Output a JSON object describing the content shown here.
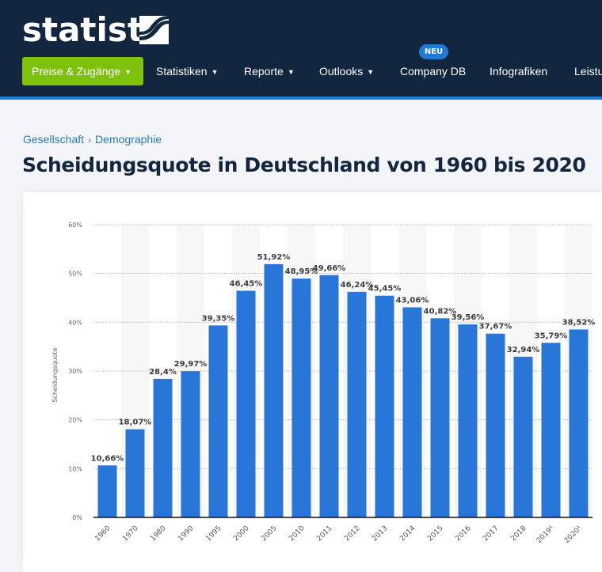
{
  "header": {
    "logo_text": "statista",
    "nav": [
      {
        "label": "Preise & Zugänge",
        "dropdown": true,
        "primary": true
      },
      {
        "label": "Statistiken",
        "dropdown": true
      },
      {
        "label": "Reporte",
        "dropdown": true
      },
      {
        "label": "Outlooks",
        "dropdown": true
      },
      {
        "label": "Company DB",
        "dropdown": false,
        "badge": "NEU"
      },
      {
        "label": "Infografiken",
        "dropdown": false
      },
      {
        "label": "Leistu",
        "dropdown": false
      }
    ],
    "colors": {
      "bar": "#13263f",
      "accent": "#1f7bd2",
      "primary_button": "#7ec20c"
    }
  },
  "breadcrumb": {
    "items": [
      "Gesellschaft",
      "Demographie"
    ],
    "separator": "›"
  },
  "page_title": "Scheidungsquote in Deutschland von 1960 bis 2020",
  "chart_data": {
    "type": "bar",
    "title": "",
    "xlabel": "",
    "ylabel": "Scheidungsquote",
    "ylim": [
      0,
      60
    ],
    "yticks": [
      0,
      10,
      20,
      30,
      40,
      50,
      60
    ],
    "ytick_labels": [
      "0%",
      "10%",
      "20%",
      "30%",
      "40%",
      "50%",
      "60%"
    ],
    "grid": true,
    "bar_color": "#2876d8",
    "categories": [
      "1960",
      "1970",
      "1980",
      "1990",
      "1995",
      "2000",
      "2005",
      "2010",
      "2011",
      "2012",
      "2013",
      "2014",
      "2015",
      "2016",
      "2017",
      "2018",
      "2019¹",
      "2020¹"
    ],
    "values": [
      10.66,
      18.07,
      28.4,
      29.97,
      39.35,
      46.45,
      51.92,
      48.95,
      49.66,
      46.24,
      45.45,
      43.06,
      40.82,
      39.56,
      37.67,
      32.94,
      35.79,
      38.52
    ],
    "data_labels": [
      "10,66%",
      "18,07%",
      "28,4%",
      "29,97%",
      "39,35%",
      "46,45%",
      "51,92%",
      "48,95%",
      "49,66%",
      "46,24%",
      "45,45%",
      "43,06%",
      "40,82%",
      "39,56%",
      "37,67%",
      "32,94%",
      "35,79%",
      "38,52%"
    ]
  }
}
